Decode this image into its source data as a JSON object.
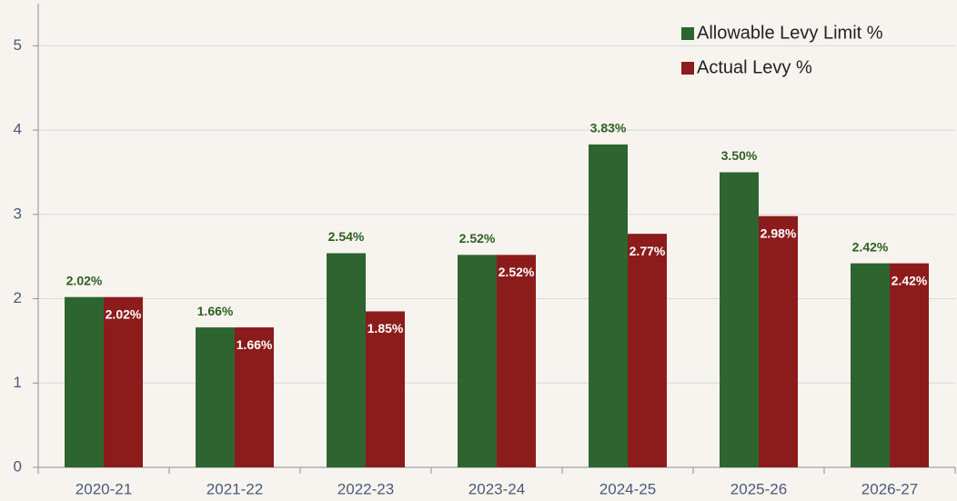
{
  "chart_data": {
    "type": "bar",
    "categories": [
      "2020-21",
      "2021-22",
      "2022-23",
      "2023-24",
      "2024-25",
      "2025-26",
      "2026-27"
    ],
    "series": [
      {
        "name": "Allowable Levy Limit %",
        "color": "#2e6430",
        "label_color": "#2e5e22",
        "values": [
          2.02,
          1.66,
          2.54,
          2.52,
          3.83,
          3.5,
          2.42
        ],
        "value_labels": [
          "2.02%",
          "1.66%",
          "2.54%",
          "2.52%",
          "3.83%",
          "3.50%",
          "2.42%"
        ]
      },
      {
        "name": "Actual Levy %",
        "color": "#8c1c1c",
        "label_color": "#ffffff",
        "values": [
          2.02,
          1.66,
          1.85,
          2.52,
          2.77,
          2.98,
          2.42
        ],
        "value_labels": [
          "2.02%",
          "1.66%",
          "1.85%",
          "2.52%",
          "2.77%",
          "2.98%",
          "2.42%"
        ]
      }
    ],
    "ylim": [
      0,
      5.5
    ],
    "yticks": [
      0,
      1,
      2,
      3,
      4,
      5
    ],
    "grid": true,
    "legend": "upper right"
  }
}
